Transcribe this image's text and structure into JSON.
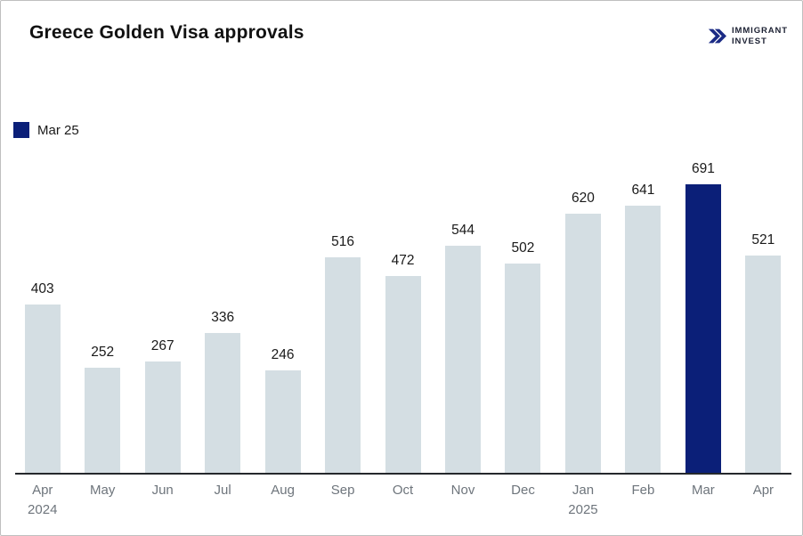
{
  "page": {
    "title": "Greece Golden Visa approvals"
  },
  "logo": {
    "line1": "IMMIGRANT",
    "line2": "INVEST"
  },
  "legend": {
    "label": "Mar 25"
  },
  "colors": {
    "bar_default": "#d4dee3",
    "bar_highlight": "#0b1f78",
    "axis": "#25282c",
    "value_label": "#1a1a1a",
    "tick_label": "#6e757c",
    "title": "#111111",
    "logo_navy": "#1b2b85"
  },
  "chart_data": {
    "type": "bar",
    "title": "Greece Golden Visa approvals",
    "categories": [
      "Apr 2024",
      "May",
      "Jun",
      "Jul",
      "Aug",
      "Sep",
      "Oct",
      "Nov",
      "Dec",
      "Jan 2025",
      "Feb",
      "Mar",
      "Apr"
    ],
    "tick_lines": [
      [
        "Apr",
        "2024"
      ],
      [
        "May"
      ],
      [
        "Jun"
      ],
      [
        "Jul"
      ],
      [
        "Aug"
      ],
      [
        "Sep"
      ],
      [
        "Oct"
      ],
      [
        "Nov"
      ],
      [
        "Dec"
      ],
      [
        "Jan",
        "2025"
      ],
      [
        "Feb"
      ],
      [
        "Mar"
      ],
      [
        "Apr"
      ]
    ],
    "values": [
      403,
      252,
      267,
      336,
      246,
      516,
      472,
      544,
      502,
      620,
      641,
      691,
      521
    ],
    "data_labels": true,
    "highlight_index": 11,
    "highlight_legend_label": "Mar 25",
    "legend_position": "top-left",
    "xlabel": "",
    "ylabel": "",
    "ylim": [
      0,
      691
    ],
    "grid": false,
    "y_axis_visible": false
  }
}
